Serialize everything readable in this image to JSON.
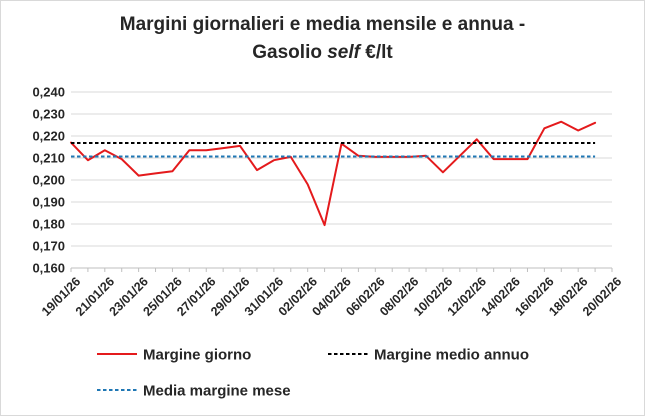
{
  "chart_data": {
    "type": "line",
    "title_line1": "Margini giornalieri e media mensile e annua -",
    "title_line2_prefix": "Gasolio ",
    "title_line2_italic": "self",
    "title_line2_suffix": " €/lt",
    "xlabel": "",
    "ylabel": "",
    "ylim": [
      0.16,
      0.24
    ],
    "y_ticks": [
      "0,160",
      "0,170",
      "0,180",
      "0,190",
      "0,200",
      "0,210",
      "0,220",
      "0,230",
      "0,240"
    ],
    "y_tick_values": [
      0.16,
      0.17,
      0.18,
      0.19,
      0.2,
      0.21,
      0.22,
      0.23,
      0.24
    ],
    "x_dates": [
      "19/01/26",
      "20/01/26",
      "21/01/26",
      "22/01/26",
      "23/01/26",
      "24/01/26",
      "25/01/26",
      "26/01/26",
      "27/01/26",
      "28/01/26",
      "29/01/26",
      "30/01/26",
      "31/01/26",
      "01/02/26",
      "02/02/26",
      "03/02/26",
      "04/02/26",
      "05/02/26",
      "06/02/26",
      "07/02/26",
      "08/02/26",
      "09/02/26",
      "10/02/26",
      "11/02/26",
      "12/02/26",
      "13/02/26",
      "14/02/26",
      "15/02/26",
      "16/02/26",
      "17/02/26",
      "18/02/26",
      "19/02/26",
      "20/02/26"
    ],
    "x_tick_labels": [
      "19/01/26",
      "21/01/26",
      "23/01/26",
      "25/01/26",
      "27/01/26",
      "29/01/26",
      "31/01/26",
      "02/02/26",
      "04/02/26",
      "06/02/26",
      "08/02/26",
      "10/02/26",
      "12/02/26",
      "14/02/26",
      "16/02/26",
      "18/02/26",
      "20/02/26"
    ],
    "series": [
      {
        "name": "Margine giorno",
        "color": "#e41a1c",
        "style": "solid",
        "x": [
          "19/01/26",
          "20/01/26",
          "21/01/26",
          "22/01/26",
          "23/01/26",
          "24/01/26",
          "25/01/26",
          "26/01/26",
          "27/01/26",
          "28/01/26",
          "29/01/26",
          "30/01/26",
          "31/01/26",
          "01/02/26",
          "02/02/26",
          "03/02/26",
          "04/02/26",
          "05/02/26",
          "06/02/26",
          "07/02/26",
          "08/02/26",
          "09/02/26",
          "10/02/26",
          "11/02/26",
          "12/02/26",
          "13/02/26",
          "14/02/26",
          "15/02/26",
          "16/02/26",
          "17/02/26",
          "18/02/26",
          "19/02/26"
        ],
        "values": [
          0.217,
          0.209,
          0.2135,
          0.2095,
          0.202,
          0.203,
          0.204,
          0.2135,
          0.2135,
          0.2145,
          0.2155,
          0.2045,
          0.209,
          0.2105,
          0.198,
          0.1795,
          0.2165,
          0.211,
          0.2105,
          0.2105,
          0.2105,
          0.211,
          0.2035,
          0.211,
          0.2185,
          0.2095,
          0.2095,
          0.2095,
          0.2235,
          0.2265,
          0.2225,
          0.226
        ]
      },
      {
        "name": "Margine medio annuo",
        "color": "#000000",
        "style": "dashed",
        "x": [
          "19/01/26",
          "19/02/26"
        ],
        "values": [
          0.2168,
          0.2168
        ]
      },
      {
        "name": "Media margine mese",
        "color": "#1f77b4",
        "style": "dashed",
        "x": [
          "19/01/26",
          "19/02/26"
        ],
        "values": [
          0.2107,
          0.2107
        ]
      }
    ],
    "grid": "horizontal",
    "legend_position": "bottom"
  }
}
